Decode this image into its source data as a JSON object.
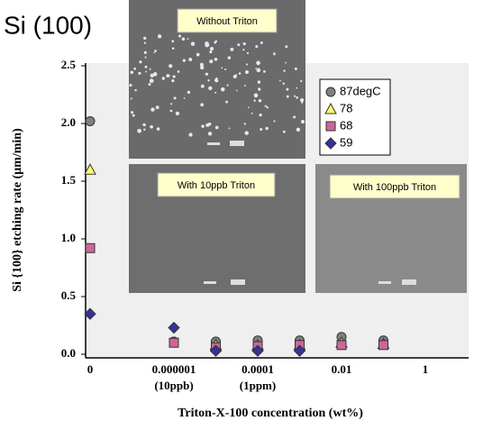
{
  "chart_data": {
    "type": "scatter",
    "title": "Si (100)",
    "y_label": "Si {100} etching rate (μm/min)",
    "x_label": "Triton-X-100 concentration (wt%)",
    "categories": [
      "0",
      null,
      "0.000001",
      null,
      "0.0001",
      null,
      "0.01",
      null,
      "1"
    ],
    "category_sublabels": [
      null,
      null,
      "(10ppb)",
      null,
      "(1ppm)",
      null,
      null,
      null,
      null
    ],
    "series": [
      {
        "name": "87degC",
        "color": "#808080",
        "marker": "circle",
        "values": [
          2.02,
          null,
          0.11,
          0.11,
          0.12,
          0.12,
          0.15,
          0.12,
          null
        ]
      },
      {
        "name": "78",
        "color": "#ffff66",
        "marker": "triangle",
        "values": [
          1.6,
          null,
          null,
          0.08,
          0.08,
          0.08,
          0.1,
          0.09,
          null
        ]
      },
      {
        "name": "68",
        "color": "#cc6699",
        "marker": "square",
        "values": [
          0.92,
          null,
          0.1,
          0.06,
          0.07,
          0.08,
          0.08,
          0.08,
          null
        ]
      },
      {
        "name": "59",
        "color": "#333399",
        "marker": "diamond",
        "values": [
          0.35,
          null,
          0.23,
          0.03,
          0.03,
          0.03,
          null,
          null,
          null
        ]
      }
    ],
    "ylim": [
      0,
      2.5
    ],
    "yticks": [
      {
        "value": 0,
        "label": "0.0"
      },
      {
        "value": 0.5,
        "label": "0.5"
      },
      {
        "value": 1,
        "label": "1.0"
      },
      {
        "value": 1.5,
        "label": "1.5"
      },
      {
        "value": 2,
        "label": "2.0"
      },
      {
        "value": 2.5,
        "label": "2.5"
      }
    ],
    "annotations": [
      "Without Triton",
      "With 10ppb Triton",
      "With 100ppb Triton"
    ]
  }
}
